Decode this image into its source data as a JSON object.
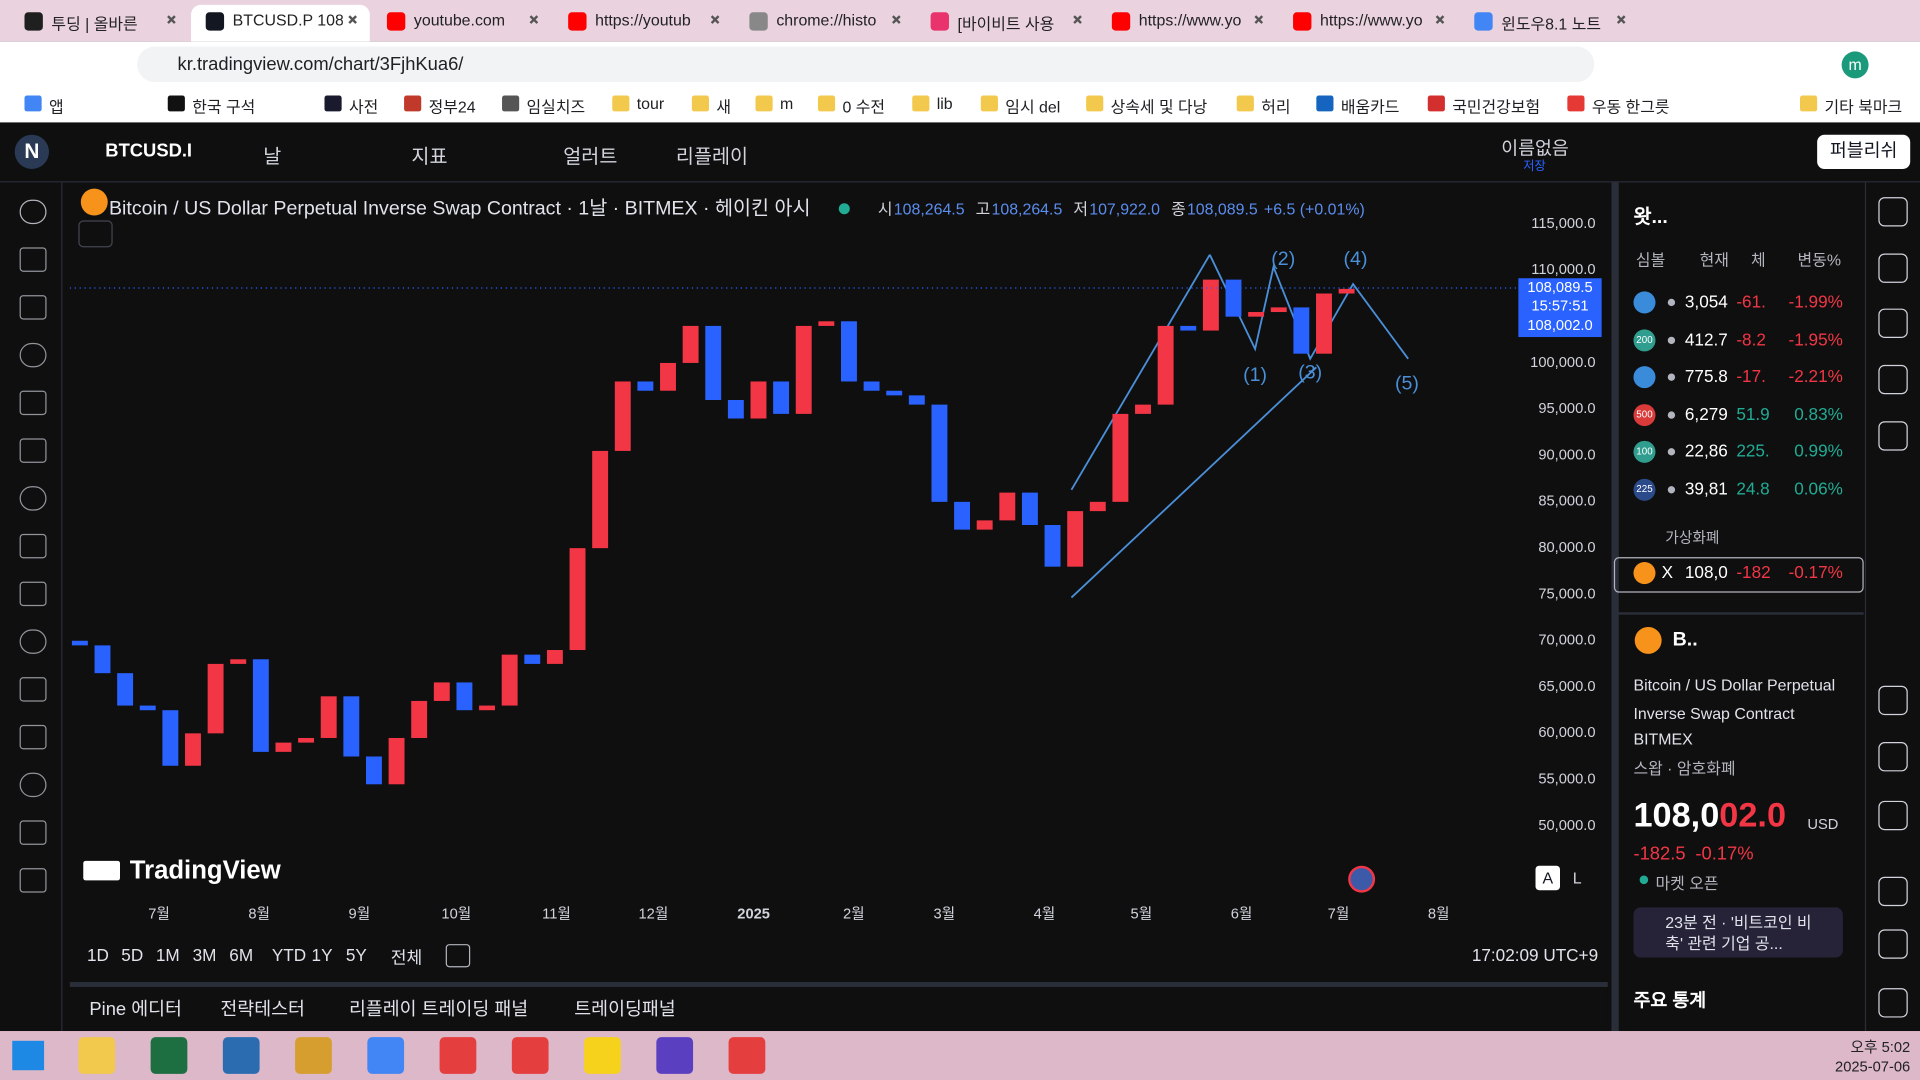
{
  "browser": {
    "tabs": [
      "투딩 | 올바른",
      "BTCUSD.P 108,",
      "youtube.com",
      "https://youtub",
      "chrome://histo",
      "[바이비트 사용",
      "https://www.yo",
      "https://www.yo",
      "윈도우8.1 노트"
    ],
    "url": "kr.tradingview.com/chart/3FjhKua6/",
    "bookmarks": [
      "앱",
      "한국 구석",
      "사전",
      "정부24",
      "임실치즈",
      "tour",
      "새",
      "m",
      "0 수전",
      "lib",
      "임시 del",
      "상속세 및 다낭",
      "허리",
      "배움카드",
      "국민건강보험",
      "우동 한그릇"
    ],
    "other_bookmarks": "기타 북마크",
    "profile": "m"
  },
  "toolbar": {
    "logo": "N",
    "symbol": "BTCUSD.I",
    "interval": "날",
    "indicators": "지표",
    "alerts": "얼러트",
    "replay": "리플레이",
    "layout_name": "이름없음",
    "save": "저장",
    "publish": "퍼블리쉬"
  },
  "chart_header": {
    "title": "Bitcoin / US Dollar Perpetual Inverse Swap Contract · 1날 · BITMEX · 헤이킨 아시",
    "ohlc": [
      {
        "label": "시",
        "value": "108,264.5"
      },
      {
        "label": "고",
        "value": "108,264.5"
      },
      {
        "label": "저",
        "value": "107,922.0"
      },
      {
        "label": "종",
        "value": "108,089.5"
      }
    ],
    "change": "+6.5 (+0.01%)"
  },
  "chart_data": {
    "type": "candlestick",
    "x_labels": [
      "7월",
      "8월",
      "9월",
      "10월",
      "11월",
      "12월",
      "2025",
      "2월",
      "3월",
      "4월",
      "5월",
      "6월",
      "7월",
      "8월"
    ],
    "open": [
      70000,
      69500,
      66500,
      63000,
      62500,
      56500,
      60000,
      67500,
      68000,
      58000,
      59000,
      59500,
      64000,
      57500,
      54500,
      59500,
      63500,
      65500,
      62500,
      63000,
      68500,
      67500,
      69000,
      80000,
      90500,
      98000,
      97000,
      100000,
      104000,
      96000,
      94000,
      98000,
      94500,
      104000,
      104500,
      98000,
      97000,
      96500,
      95500,
      85000,
      82000,
      83000,
      86000,
      82500,
      78000,
      84000,
      85000,
      94500,
      95500,
      104000,
      103500,
      109000,
      105000,
      105500,
      106000,
      101000,
      107500
    ],
    "close": [
      69500,
      66500,
      63000,
      62500,
      56500,
      60000,
      67500,
      68000,
      58000,
      59000,
      59500,
      64000,
      57500,
      54500,
      59500,
      63500,
      65500,
      62500,
      63000,
      68500,
      67500,
      69000,
      80000,
      90500,
      98000,
      97000,
      100000,
      104000,
      96000,
      94000,
      98000,
      94500,
      104000,
      104500,
      98000,
      97000,
      96500,
      95500,
      85000,
      82000,
      83000,
      86000,
      82500,
      78000,
      84000,
      85000,
      94500,
      95500,
      104000,
      103500,
      109000,
      105000,
      105500,
      106000,
      101000,
      107500,
      108000
    ],
    "up_color": "#f23645",
    "down_color": "#2962ff",
    "ylim": [
      42400,
      118700
    ],
    "yticks": [
      {
        "value": 50000,
        "label": "50,000.0"
      },
      {
        "value": 55000,
        "label": "55,000.0"
      },
      {
        "value": 60000,
        "label": "60,000.0"
      },
      {
        "value": 65000,
        "label": "65,000.0"
      },
      {
        "value": 70000,
        "label": "70,000.0"
      },
      {
        "value": 75000,
        "label": "75,000.0"
      },
      {
        "value": 80000,
        "label": "80,000.0"
      },
      {
        "value": 85000,
        "label": "85,000.0"
      },
      {
        "value": 90000,
        "label": "90,000.0"
      },
      {
        "value": 95000,
        "label": "95,000.0"
      },
      {
        "value": 100000,
        "label": "100,000.0"
      },
      {
        "value": 105000,
        "label": "105,000.0"
      },
      {
        "value": 110000,
        "label": "110,000.0"
      },
      {
        "value": 115000,
        "label": "115,000.0"
      }
    ],
    "price_label": {
      "value": 108089.5,
      "label": "108,089.5"
    },
    "countdown": "15:57:51",
    "bid_label": "108,002.0",
    "wave_labels": [
      "(1)",
      "(2)",
      "(3)",
      "(4)",
      "(5)"
    ],
    "watermark": "TradingView",
    "scale_buttons": [
      "A",
      "L"
    ]
  },
  "watchlist": {
    "title": "왓...",
    "columns": [
      "심볼",
      "현재",
      "체",
      "변동%"
    ],
    "rows": [
      {
        "price": "3,054",
        "change": "-61.",
        "pct": "-1.99%"
      },
      {
        "badge": "200",
        "price": "412.7",
        "change": "-8.2",
        "pct": "-1.95%"
      },
      {
        "price": "775.8",
        "change": "-17.",
        "pct": "-2.21%"
      },
      {
        "badge": "500",
        "price": "6,279",
        "change": "51.9",
        "pct": "0.83%"
      },
      {
        "badge": "100",
        "price": "22,86",
        "change": "225.",
        "pct": "0.99%"
      },
      {
        "badge": "225",
        "price": "39,81",
        "change": "24.8",
        "pct": "0.06%"
      }
    ],
    "section": "가상화폐",
    "crypto_row": {
      "symbol": "X",
      "price": "108,0",
      "change": "-182",
      "pct": "-0.17%"
    }
  },
  "details": {
    "symbol": "B..",
    "name": "Bitcoin / US Dollar Perpetual Inverse Swap Contract",
    "exchange": "BITMEX",
    "category": "스왑 · 암호화폐",
    "price_main": "108,0",
    "price_tail": "02.0",
    "currency": "USD",
    "change": "-182.5",
    "change_pct": "-0.17%",
    "market_status": "마켓 오픈",
    "news": "23분 전 · '비트코인 비축' 관련 기업 공...",
    "stats_title": "주요 통계"
  },
  "bottom_bar": {
    "ranges": [
      "1D",
      "5D",
      "1M",
      "3M",
      "6M",
      "YTD",
      "1Y",
      "5Y",
      "전체"
    ],
    "clock": "17:02:09 UTC+9",
    "panels": [
      "Pine 에디터",
      "전략테스터",
      "리플레이 트레이딩 패널",
      "트레이딩패널"
    ]
  },
  "taskbar": {
    "time": "오후 5:02",
    "date": "2025-07-06"
  }
}
